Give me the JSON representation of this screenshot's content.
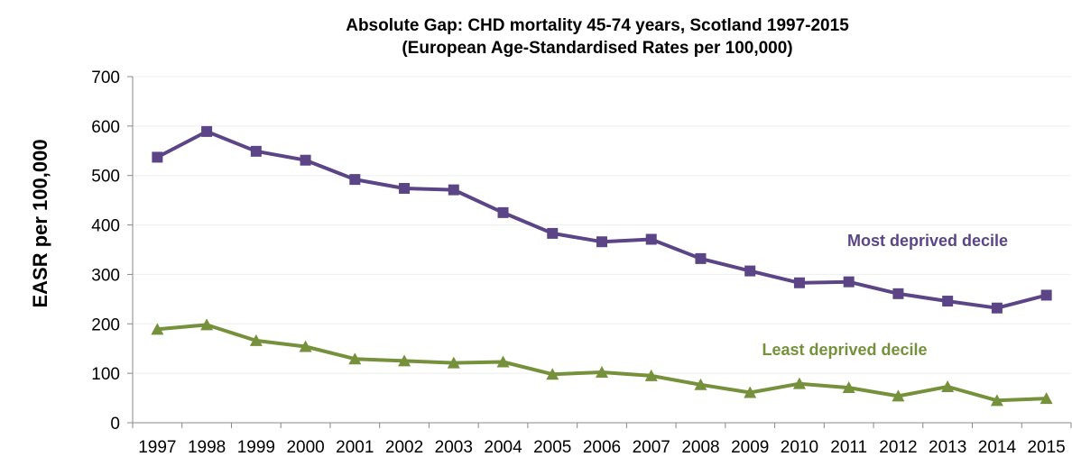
{
  "chart_data": {
    "type": "line",
    "title": "Absolute Gap: CHD mortality 45-74 years, Scotland 1997-2015",
    "subtitle": "(European Age-Standardised Rates per 100,000)",
    "xlabel": "",
    "ylabel": "EASR  per 100,000",
    "x": [
      "1997",
      "1998",
      "1999",
      "2000",
      "2001",
      "2002",
      "2003",
      "2004",
      "2005",
      "2006",
      "2007",
      "2008",
      "2009",
      "2010",
      "2011",
      "2012",
      "2013",
      "2014",
      "2015"
    ],
    "ylim": [
      0,
      700
    ],
    "yticks": [
      "0",
      "100",
      "200",
      "300",
      "400",
      "500",
      "600",
      "700"
    ],
    "grid": true,
    "legend": "none",
    "series": [
      {
        "name": "Most deprived decile",
        "color": "#5b4586",
        "marker": "square",
        "values": [
          537,
          589,
          549,
          531,
          492,
          474,
          471,
          425,
          383,
          366,
          371,
          332,
          307,
          283,
          285,
          261,
          246,
          232,
          258
        ]
      },
      {
        "name": "Least deprived decile",
        "color": "#76913b",
        "marker": "triangle",
        "values": [
          189,
          198,
          166,
          154,
          129,
          125,
          121,
          123,
          98,
          102,
          95,
          77,
          61,
          79,
          71,
          54,
          73,
          45,
          49
        ]
      }
    ],
    "grid_color": "#eeeeee",
    "axis_color": "#888888"
  }
}
